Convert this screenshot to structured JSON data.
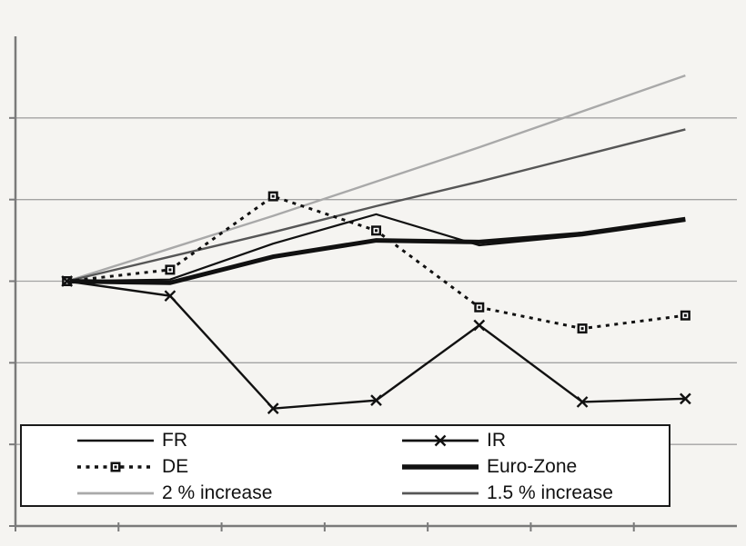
{
  "chart_data": {
    "type": "line",
    "title": "",
    "x": [
      1,
      2,
      3,
      4,
      5,
      6,
      7
    ],
    "x_tick_labels_visible": false,
    "y_tick_labels_visible": false,
    "ylim": [
      85,
      115
    ],
    "y_gridlines": [
      90,
      95,
      100,
      105,
      110
    ],
    "baseline_value": 100,
    "grid": "horizontal-only",
    "legend_position": "bottom-left",
    "series": [
      {
        "name": "FR",
        "color": "#111111",
        "width": 2.2,
        "dash": null,
        "marker": null,
        "values": [
          100,
          100.1,
          102.3,
          104.1,
          102.2,
          102.8,
          103.7
        ]
      },
      {
        "name": "IR",
        "color": "#111111",
        "width": 2.4,
        "dash": null,
        "marker": "x",
        "values": [
          100,
          99.1,
          92.2,
          92.7,
          97.3,
          92.6,
          92.8
        ]
      },
      {
        "name": "DE",
        "color": "#111111",
        "width": 3.0,
        "dash": "4 5.5",
        "marker": "square",
        "values": [
          100,
          100.7,
          105.2,
          103.1,
          98.4,
          97.1,
          97.9
        ]
      },
      {
        "name": "Euro-Zone",
        "color": "#111111",
        "width": 5.0,
        "dash": null,
        "marker": null,
        "values": [
          100,
          99.9,
          101.5,
          102.5,
          102.4,
          102.9,
          103.8
        ]
      },
      {
        "name": "2 % increase",
        "color": "#a9a9a9",
        "width": 2.4,
        "dash": null,
        "marker": null,
        "values": [
          100,
          102.0,
          104.0,
          106.1,
          108.2,
          110.4,
          112.6
        ]
      },
      {
        "name": "1.5 % increase",
        "color": "#565656",
        "width": 2.4,
        "dash": null,
        "marker": null,
        "values": [
          100,
          101.5,
          103.0,
          104.6,
          106.1,
          107.7,
          109.3
        ]
      }
    ],
    "draw_order": [
      4,
      5,
      0,
      3,
      2,
      1
    ]
  },
  "colors": {
    "background": "#f5f4f1",
    "gridline": "#a3a3a3",
    "axis": "#7a7a7a",
    "legend_border": "#1a1a1a",
    "legend_background": "#ffffff",
    "text": "#111111"
  }
}
